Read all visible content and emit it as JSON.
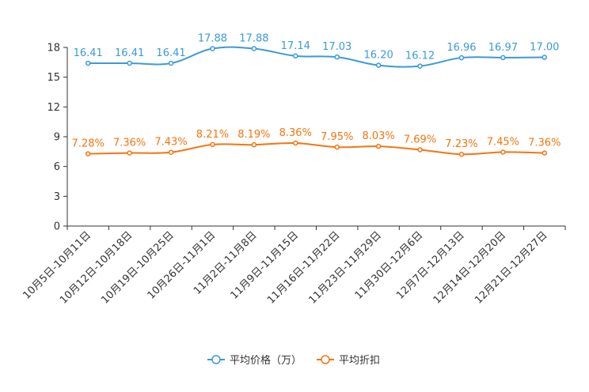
{
  "chart_data": {
    "type": "line",
    "categories": [
      "10月5日-10月11日",
      "10月12日-10月18日",
      "10月19日-10月25日",
      "10月26日-11月1日",
      "11月2日-11月8日",
      "11月9日-11月15日",
      "11月16日-11月22日",
      "11月23日-11月29日",
      "11月30日-12月6日",
      "12月7日-12月13日",
      "12月14日-12月20日",
      "12月21日-12月27日"
    ],
    "ylim": [
      0,
      18
    ],
    "yticks": [
      0,
      3,
      6,
      9,
      12,
      15,
      18
    ],
    "series": [
      {
        "name": "平均价格（万）",
        "color": "#3a9bd5",
        "values": [
          16.41,
          16.41,
          16.41,
          17.88,
          17.88,
          17.14,
          17.03,
          16.2,
          16.12,
          16.96,
          16.97,
          17.0
        ],
        "labels": [
          "16.41",
          "16.41",
          "16.41",
          "17.88",
          "17.88",
          "17.14",
          "17.03",
          "16.20",
          "16.12",
          "16.96",
          "16.97",
          "17.00"
        ]
      },
      {
        "name": "平均折扣",
        "color": "#f5750f",
        "values": [
          7.28,
          7.36,
          7.43,
          8.21,
          8.19,
          8.36,
          7.95,
          8.03,
          7.69,
          7.23,
          7.45,
          7.36
        ],
        "labels": [
          "7.28%",
          "7.36%",
          "7.43%",
          "8.21%",
          "8.19%",
          "8.36%",
          "7.95%",
          "8.03%",
          "7.69%",
          "7.23%",
          "7.45%",
          "7.36%"
        ]
      }
    ],
    "legend_position": "bottom-center"
  }
}
